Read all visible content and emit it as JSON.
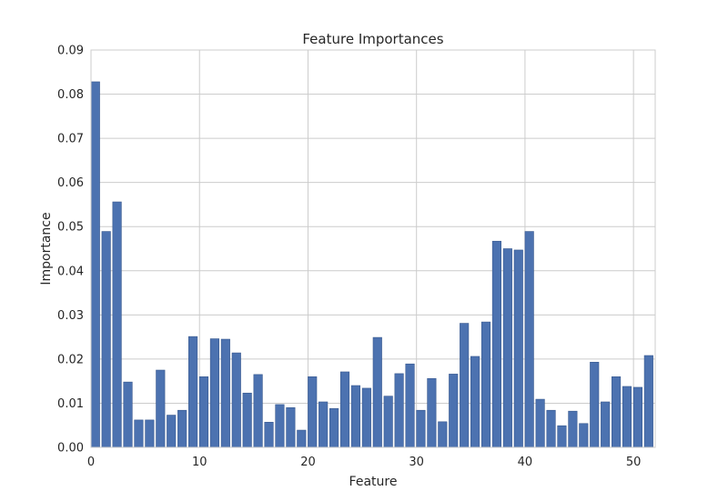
{
  "chart_data": {
    "type": "bar",
    "title": "Feature Importances",
    "xlabel": "Feature",
    "ylabel": "Importance",
    "xlim": [
      0,
      52
    ],
    "ylim": [
      0,
      0.09
    ],
    "x_ticks": [
      "0",
      "10",
      "20",
      "30",
      "40",
      "50"
    ],
    "y_ticks": [
      "0.00",
      "0.01",
      "0.02",
      "0.03",
      "0.04",
      "0.05",
      "0.06",
      "0.07",
      "0.08",
      "0.09"
    ],
    "grid": true,
    "bar_color": "#4c72b0",
    "categories": [
      0,
      1,
      2,
      3,
      4,
      5,
      6,
      7,
      8,
      9,
      10,
      11,
      12,
      13,
      14,
      15,
      16,
      17,
      18,
      19,
      20,
      21,
      22,
      23,
      24,
      25,
      26,
      27,
      28,
      29,
      30,
      31,
      32,
      33,
      34,
      35,
      36,
      37,
      38,
      39,
      40,
      41,
      42,
      43,
      44,
      45,
      46,
      47,
      48,
      49,
      50,
      51
    ],
    "values": [
      0.0828,
      0.0489,
      0.0556,
      0.0148,
      0.0062,
      0.0062,
      0.0175,
      0.0073,
      0.0084,
      0.0251,
      0.016,
      0.0246,
      0.0245,
      0.0214,
      0.0123,
      0.0165,
      0.0057,
      0.0097,
      0.009,
      0.0039,
      0.016,
      0.0103,
      0.0088,
      0.0171,
      0.014,
      0.0134,
      0.0249,
      0.0116,
      0.0167,
      0.0189,
      0.0084,
      0.0156,
      0.0058,
      0.0166,
      0.0281,
      0.0206,
      0.0284,
      0.0467,
      0.045,
      0.0447,
      0.0489,
      0.0109,
      0.0084,
      0.0049,
      0.0082,
      0.0054,
      0.0193,
      0.0103,
      0.016,
      0.0138,
      0.0136,
      0.0208
    ]
  }
}
